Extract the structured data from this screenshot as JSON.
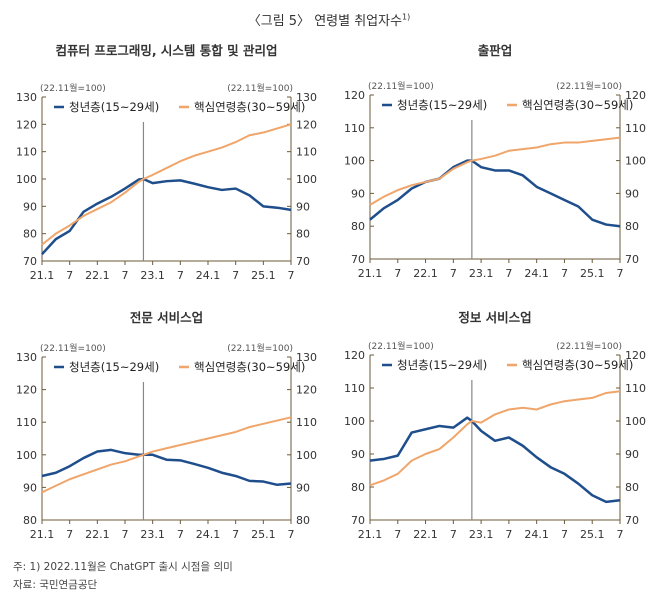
{
  "title": "〈그림 5〉 연령별 취업자수",
  "title_sup": "1)",
  "notes": [
    "주: 1) 2022.11월은 ChatGPT 출시 시점을 의미",
    "자료: 국민연금공단"
  ],
  "colors": {
    "youth": "#1f4e8c",
    "core": "#f0a56a",
    "axis": "#6b5a3a",
    "marker": "#888888"
  },
  "chart_data": [
    {
      "type": "line",
      "title": "컴퓨터 프로그래밍, 시스템 통합 및 관리업",
      "unit_left": "(22.11월=100)",
      "unit_right": "(22.11월=100)",
      "ylim": [
        70,
        130
      ],
      "yticks": [
        "70",
        "80",
        "90",
        "100",
        "110",
        "120",
        "130"
      ],
      "xticks": [
        "21.1",
        "7",
        "22.1",
        "7",
        "23.1",
        "7",
        "24.1",
        "7",
        "25.1",
        "7"
      ],
      "x": [
        "21.1",
        "21.4",
        "21.7",
        "21.10",
        "22.1",
        "22.4",
        "22.7",
        "22.10",
        "22.11",
        "23.1",
        "23.4",
        "23.7",
        "23.10",
        "24.1",
        "24.4",
        "24.7",
        "24.10",
        "25.1",
        "25.4",
        "25.7"
      ],
      "series": [
        {
          "name": "청년층(15~29세)",
          "values": [
            72.5,
            78,
            81,
            88,
            91,
            93.5,
            96.5,
            99.8,
            100,
            98.5,
            99.2,
            99.5,
            98.3,
            97,
            96,
            96.5,
            94,
            90,
            89.5,
            88.7
          ]
        },
        {
          "name": "핵심연령층(30~59세)",
          "values": [
            76,
            80,
            83,
            86.5,
            89,
            91.5,
            95,
            99,
            100,
            101.5,
            104,
            106.5,
            108.5,
            110,
            111.5,
            113.5,
            116,
            117,
            118.5,
            120
          ]
        }
      ]
    },
    {
      "type": "line",
      "title": "출판업",
      "unit_left": "(22.11월=100)",
      "unit_right": "(22.11월=100)",
      "ylim": [
        70,
        120
      ],
      "yticks": [
        "70",
        "80",
        "90",
        "100",
        "110",
        "120"
      ],
      "xticks": [
        "21.1",
        "7",
        "22.1",
        "7",
        "23.1",
        "7",
        "24.1",
        "7",
        "25.1",
        "7"
      ],
      "x": [
        "21.1",
        "21.4",
        "21.7",
        "21.10",
        "22.1",
        "22.4",
        "22.7",
        "22.10",
        "22.11",
        "23.1",
        "23.4",
        "23.7",
        "23.10",
        "24.1",
        "24.4",
        "24.7",
        "24.10",
        "25.1",
        "25.4",
        "25.7"
      ],
      "series": [
        {
          "name": "청년층(15~29세)",
          "values": [
            82,
            85.5,
            88,
            91.5,
            93.5,
            94.5,
            98,
            100,
            100,
            98,
            97,
            97,
            95.5,
            92,
            90,
            88,
            86,
            82,
            80.5,
            80
          ]
        },
        {
          "name": "핵심연령층(30~59세)",
          "values": [
            86.5,
            89,
            91,
            92.5,
            93.5,
            94.5,
            97.5,
            99.5,
            100,
            100.5,
            101.5,
            103,
            103.5,
            104,
            105,
            105.5,
            105.5,
            106,
            106.5,
            107
          ]
        }
      ]
    },
    {
      "type": "line",
      "title": "전문 서비스업",
      "unit_left": "(22.11월=100)",
      "unit_right": "(22.11월=100)",
      "ylim": [
        80,
        130
      ],
      "yticks": [
        "80",
        "90",
        "100",
        "110",
        "120",
        "130"
      ],
      "xticks": [
        "21.1",
        "7",
        "22.1",
        "7",
        "23.1",
        "7",
        "24.1",
        "7",
        "25.1",
        "7"
      ],
      "x": [
        "21.1",
        "21.4",
        "21.7",
        "21.10",
        "22.1",
        "22.4",
        "22.7",
        "22.10",
        "22.11",
        "23.1",
        "23.4",
        "23.7",
        "23.10",
        "24.1",
        "24.4",
        "24.7",
        "24.10",
        "25.1",
        "25.4",
        "25.7"
      ],
      "series": [
        {
          "name": "청년층(15~29세)",
          "values": [
            93.5,
            94.5,
            96.5,
            99,
            101,
            101.5,
            100.5,
            100,
            100,
            100,
            98.5,
            98.3,
            97.2,
            96,
            94.5,
            93.5,
            92,
            91.8,
            90.8,
            91.2
          ]
        },
        {
          "name": "핵심연령층(30~59세)",
          "values": [
            88.5,
            90.5,
            92.5,
            94,
            95.5,
            97,
            98,
            99.5,
            100,
            101,
            102,
            103,
            104,
            105,
            106,
            107,
            108.5,
            109.5,
            110.5,
            111.5
          ]
        }
      ]
    },
    {
      "type": "line",
      "title": "정보 서비스업",
      "unit_left": "(22.11월=100)",
      "unit_right": "(22.11월=100)",
      "ylim": [
        70,
        120
      ],
      "yticks": [
        "70",
        "80",
        "90",
        "100",
        "110",
        "120"
      ],
      "xticks": [
        "21.1",
        "7",
        "22.1",
        "7",
        "23.1",
        "7",
        "24.1",
        "7",
        "25.1",
        "7"
      ],
      "x": [
        "21.1",
        "21.4",
        "21.7",
        "21.10",
        "22.1",
        "22.4",
        "22.7",
        "22.10",
        "22.11",
        "23.1",
        "23.4",
        "23.7",
        "23.10",
        "24.1",
        "24.4",
        "24.7",
        "24.10",
        "25.1",
        "25.4",
        "25.7"
      ],
      "series": [
        {
          "name": "청년층(15~29세)",
          "values": [
            88,
            88.5,
            89.5,
            96.5,
            97.5,
            98.5,
            98,
            101,
            100,
            97,
            94,
            95,
            92.5,
            89,
            86,
            84,
            81,
            77.5,
            75.5,
            76
          ]
        },
        {
          "name": "핵심연령층(30~59세)",
          "values": [
            80.5,
            82,
            84,
            88,
            90,
            91.5,
            95,
            99,
            100,
            99.5,
            102,
            103.5,
            104,
            103.5,
            105,
            106,
            106.5,
            107,
            108.5,
            109
          ]
        }
      ]
    }
  ]
}
